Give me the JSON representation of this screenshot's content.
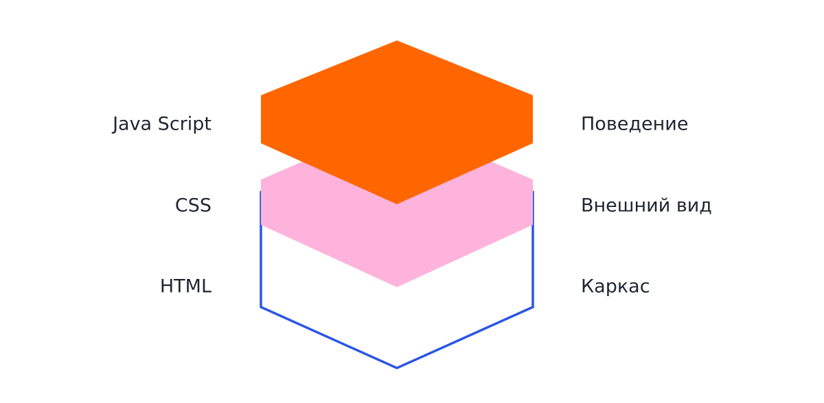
{
  "diagram": {
    "layers": [
      {
        "id": "html",
        "technology": "HTML",
        "role": "Каркас",
        "style": "outline",
        "color": "#2b55e6"
      },
      {
        "id": "css",
        "technology": "CSS",
        "role": "Внешний вид",
        "style": "filled",
        "color": "#feb3dc"
      },
      {
        "id": "javascript",
        "technology": "Java Script",
        "role": "Поведение",
        "style": "filled",
        "color": "#ff6600"
      }
    ]
  }
}
